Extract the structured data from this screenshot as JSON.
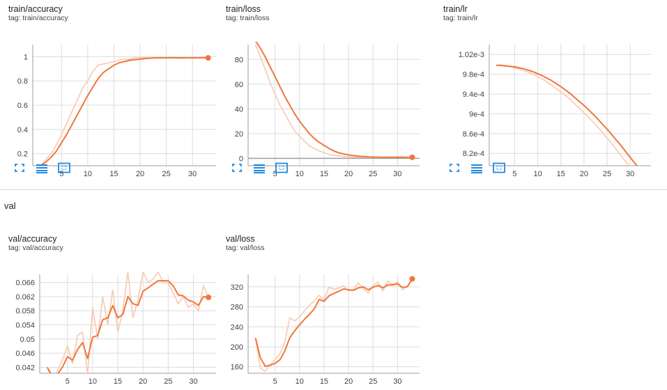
{
  "colors": {
    "line": "#f0763b",
    "raw": "#f7c9b1",
    "grid": "#dcdcdc",
    "axis": "#9e9e9e",
    "icon": "#1e88e5"
  },
  "icons": [
    "fullscreen-icon",
    "data-table-icon",
    "fit-domain-icon"
  ],
  "section": {
    "title": "val"
  },
  "cards": {
    "train_accuracy": {
      "title": "train/accuracy",
      "tag": "tag: train/accuracy"
    },
    "train_loss": {
      "title": "train/loss",
      "tag": "tag: train/loss"
    },
    "train_lr": {
      "title": "train/lr",
      "tag": "tag: train/lr"
    },
    "val_accuracy": {
      "title": "val/accuracy",
      "tag": "tag: val/accuracy"
    },
    "val_loss": {
      "title": "val/loss",
      "tag": "tag: val/loss"
    }
  },
  "chart_data": [
    {
      "id": "train_accuracy",
      "type": "line",
      "xlim": [
        -0.5,
        34.5
      ],
      "ylim": [
        0.1,
        1.1
      ],
      "xticks": [
        5,
        10,
        15,
        20,
        25,
        30
      ],
      "yticks": [
        0.2,
        0.4,
        0.6,
        0.8,
        1
      ],
      "ytick_labels": [
        "0.2",
        "0.4",
        "0.6",
        "0.8",
        "1"
      ],
      "x": [
        1,
        2,
        3,
        4,
        5,
        6,
        7,
        8,
        9,
        10,
        11,
        12,
        13,
        14,
        15,
        16,
        17,
        18,
        19,
        20,
        21,
        22,
        23,
        24,
        25,
        26,
        27,
        28,
        29,
        30,
        31,
        32,
        33
      ],
      "smoothed": [
        0.1,
        0.13,
        0.17,
        0.22,
        0.29,
        0.36,
        0.44,
        0.52,
        0.6,
        0.68,
        0.75,
        0.82,
        0.87,
        0.9,
        0.93,
        0.95,
        0.96,
        0.97,
        0.975,
        0.98,
        0.985,
        0.988,
        0.99,
        0.99,
        0.991,
        0.992,
        0.99,
        0.991,
        0.99,
        0.991,
        0.99,
        0.992,
        0.99
      ],
      "raw": [
        0.1,
        0.15,
        0.2,
        0.27,
        0.36,
        0.45,
        0.55,
        0.64,
        0.74,
        0.8,
        0.88,
        0.93,
        0.94,
        0.95,
        0.96,
        0.97,
        0.98,
        0.98,
        0.99,
        0.99,
        0.99,
        0.99,
        0.99,
        0.99,
        0.99,
        0.99,
        0.99,
        0.99,
        0.99,
        0.99,
        0.99,
        0.99,
        0.99
      ],
      "baseline": null
    },
    {
      "id": "train_loss",
      "type": "line",
      "xlim": [
        -0.5,
        34.5
      ],
      "ylim": [
        -6,
        92
      ],
      "xticks": [
        5,
        10,
        15,
        20,
        25,
        30
      ],
      "yticks": [
        0,
        20,
        40,
        60,
        80
      ],
      "ytick_labels": [
        "0",
        "20",
        "40",
        "60",
        "80"
      ],
      "x": [
        1,
        2,
        3,
        4,
        5,
        6,
        7,
        8,
        9,
        10,
        11,
        12,
        13,
        14,
        15,
        16,
        17,
        18,
        19,
        20,
        21,
        22,
        23,
        24,
        25,
        26,
        27,
        28,
        29,
        30,
        31,
        32,
        33
      ],
      "smoothed": [
        95,
        89,
        82,
        74,
        66,
        58,
        50,
        43,
        36,
        30,
        25,
        20,
        16,
        13,
        10.5,
        8,
        6,
        4.5,
        3.5,
        2.8,
        2.2,
        1.8,
        1.5,
        1.2,
        1,
        1,
        0.8,
        0.9,
        0.8,
        0.9,
        1,
        0.8,
        0.8
      ],
      "raw": [
        92,
        82,
        72,
        61,
        52,
        43,
        36,
        29,
        22,
        18,
        14,
        10,
        8,
        6,
        4.5,
        3,
        2.5,
        2,
        1.5,
        1.2,
        1,
        1,
        0.8,
        0.8,
        0.7,
        0.8,
        0.6,
        0.9,
        0.7,
        0.9,
        1,
        0.6,
        0.7
      ],
      "baseline": 0
    },
    {
      "id": "train_lr",
      "type": "line",
      "xlim": [
        -0.5,
        34.5
      ],
      "ylim": [
        0.000795,
        0.00104
      ],
      "xticks": [
        5,
        10,
        15,
        20,
        25,
        30
      ],
      "yticks": [
        0.00082,
        0.00086,
        0.0009,
        0.00094,
        0.00098,
        0.00102
      ],
      "ytick_labels": [
        "8.2e-4",
        "8.6e-4",
        "9e-4",
        "9.4e-4",
        "9.8e-4",
        "1.02e-3"
      ],
      "x": [
        1,
        2,
        3,
        4,
        5,
        6,
        7,
        8,
        9,
        10,
        11,
        12,
        13,
        14,
        15,
        16,
        17,
        18,
        19,
        20,
        21,
        22,
        23,
        24,
        25,
        26,
        27,
        28,
        29,
        30,
        31,
        32,
        33,
        34
      ],
      "smoothed": [
        0.000998,
        0.000998,
        0.000997,
        0.000996,
        0.000995,
        0.000993,
        0.000991,
        0.000988,
        0.000985,
        0.000981,
        0.000977,
        0.000972,
        0.000967,
        0.000961,
        0.000955,
        0.000948,
        0.000941,
        0.000933,
        0.000925,
        0.000917,
        0.000908,
        0.000899,
        0.000889,
        0.000879,
        0.000869,
        0.000858,
        0.000847,
        0.000836,
        0.000824,
        0.000812,
        0.0008,
        0.00079,
        0.00078,
        0.00077
      ],
      "raw": [
        0.000998,
        0.000997,
        0.000996,
        0.000995,
        0.000993,
        0.00099,
        0.000987,
        0.000984,
        0.00098,
        0.000975,
        0.00097,
        0.000964,
        0.000958,
        0.000951,
        0.000944,
        0.000937,
        0.000929,
        0.00092,
        0.000911,
        0.000902,
        0.000893,
        0.000883,
        0.000873,
        0.000862,
        0.000851,
        0.00084,
        0.000828,
        0.000816,
        0.000804,
        0.000792,
        0.00078,
        0.00077,
        0.00076,
        0.00075
      ],
      "baseline": null
    },
    {
      "id": "val_accuracy",
      "type": "line",
      "xlim": [
        -0.5,
        34.5
      ],
      "ylim": [
        0.0403,
        0.0683
      ],
      "xticks": [
        5,
        10,
        15,
        20,
        25,
        30
      ],
      "yticks": [
        0.042,
        0.046,
        0.05,
        0.054,
        0.058,
        0.062,
        0.066
      ],
      "ytick_labels": [
        "0.042",
        "0.046",
        "0.05",
        "0.054",
        "0.058",
        "0.062",
        "0.066"
      ],
      "x": [
        1,
        2,
        3,
        4,
        5,
        6,
        7,
        8,
        9,
        10,
        11,
        12,
        13,
        14,
        15,
        16,
        17,
        18,
        19,
        20,
        21,
        22,
        23,
        24,
        25,
        26,
        27,
        28,
        29,
        30,
        31,
        32,
        33
      ],
      "smoothed": [
        0.042,
        0.0395,
        0.04,
        0.042,
        0.045,
        0.044,
        0.047,
        0.049,
        0.0445,
        0.0505,
        0.051,
        0.0555,
        0.056,
        0.0595,
        0.056,
        0.057,
        0.062,
        0.06,
        0.0595,
        0.0635,
        0.0645,
        0.0655,
        0.0665,
        0.0665,
        0.0665,
        0.065,
        0.0625,
        0.0622,
        0.061,
        0.0605,
        0.0595,
        0.062,
        0.0618
      ],
      "raw": [
        0.042,
        0.038,
        0.041,
        0.044,
        0.048,
        0.043,
        0.051,
        0.052,
        0.04,
        0.059,
        0.05,
        0.062,
        0.054,
        0.064,
        0.052,
        0.058,
        0.069,
        0.056,
        0.061,
        0.069,
        0.066,
        0.067,
        0.069,
        0.066,
        0.066,
        0.063,
        0.06,
        0.062,
        0.059,
        0.06,
        0.058,
        0.065,
        0.062
      ],
      "baseline": null
    },
    {
      "id": "val_loss",
      "type": "line",
      "xlim": [
        -0.5,
        34.5
      ],
      "ylim": [
        147,
        345
      ],
      "xticks": [
        5,
        10,
        15,
        20,
        25,
        30
      ],
      "yticks": [
        160,
        200,
        240,
        280,
        320
      ],
      "ytick_labels": [
        "160",
        "200",
        "240",
        "280",
        "320"
      ],
      "x": [
        1,
        2,
        3,
        4,
        5,
        6,
        7,
        8,
        9,
        10,
        11,
        12,
        13,
        14,
        15,
        16,
        17,
        18,
        19,
        20,
        21,
        22,
        23,
        24,
        25,
        26,
        27,
        28,
        29,
        30,
        31,
        32,
        33
      ],
      "smoothed": [
        218,
        178,
        161,
        163,
        167,
        174,
        192,
        218,
        232,
        244,
        255,
        265,
        276,
        295,
        291,
        302,
        307,
        311,
        316,
        314,
        313,
        318,
        320,
        314,
        319,
        323,
        318,
        324,
        324,
        326,
        319,
        320,
        336
      ],
      "raw": [
        218,
        158,
        151,
        165,
        174,
        186,
        210,
        258,
        252,
        260,
        272,
        283,
        292,
        303,
        293,
        320,
        315,
        318,
        322,
        312,
        314,
        328,
        316,
        308,
        322,
        330,
        312,
        331,
        325,
        330,
        314,
        322,
        336
      ],
      "baseline": null
    }
  ]
}
